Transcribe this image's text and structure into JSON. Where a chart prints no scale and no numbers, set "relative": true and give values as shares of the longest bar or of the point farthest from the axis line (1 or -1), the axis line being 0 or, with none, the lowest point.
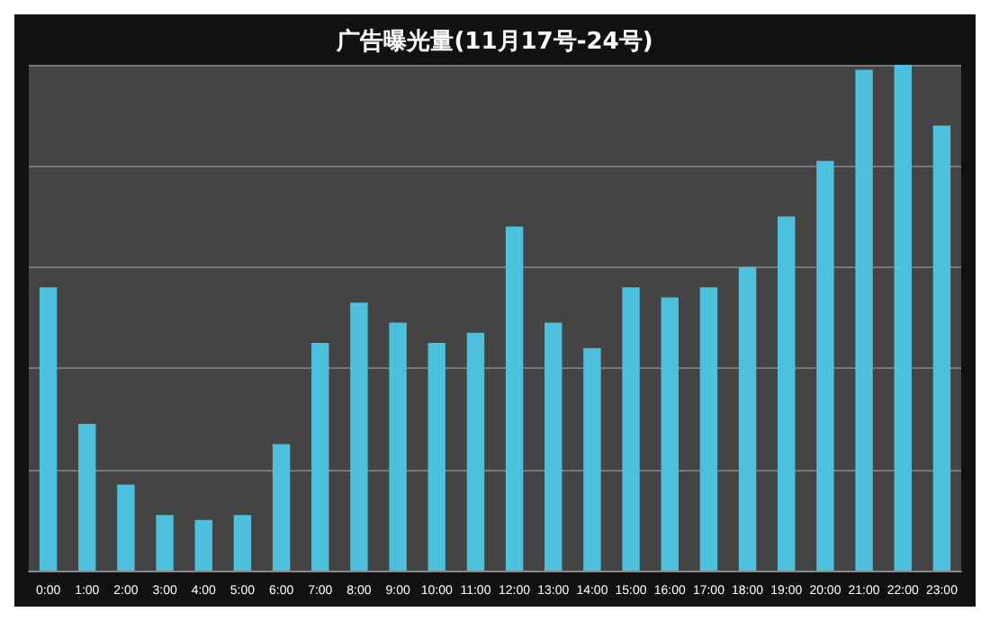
{
  "chart_data": {
    "type": "bar",
    "title": "广告曝光量(11月17号-24号)",
    "categories": [
      "0:00",
      "1:00",
      "2:00",
      "3:00",
      "4:00",
      "5:00",
      "6:00",
      "7:00",
      "8:00",
      "9:00",
      "10:00",
      "11:00",
      "12:00",
      "13:00",
      "14:00",
      "15:00",
      "16:00",
      "17:00",
      "18:00",
      "19:00",
      "20:00",
      "21:00",
      "22:00",
      "23:00"
    ],
    "values": [
      0.56,
      0.29,
      0.17,
      0.11,
      0.1,
      0.11,
      0.25,
      0.45,
      0.53,
      0.49,
      0.45,
      0.47,
      0.68,
      0.49,
      0.44,
      0.56,
      0.54,
      0.56,
      0.6,
      0.7,
      0.81,
      0.99,
      1,
      0.88
    ],
    "color": "#4cc0dc",
    "relative": true,
    "grid": "y"
  }
}
